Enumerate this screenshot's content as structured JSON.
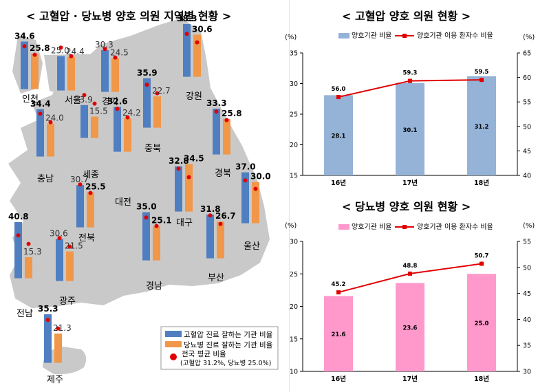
{
  "colors": {
    "map_land": "#c9c9c9",
    "bp_bar": "#4f7fc0",
    "db_bar": "#f0974a",
    "national_dot": "#e00000",
    "bp_chart_bar": "#95b3d7",
    "db_chart_bar": "#ff99cc",
    "rate_line": "#e00000"
  },
  "map_panel": {
    "title": "< 고혈압 · 당뇨병 양호 의원 지역별 현황 >",
    "legend": {
      "bp_label": "고혈압 진료 잘하는 기관 비율",
      "db_label": "당뇨병 진료 잘하는 기관 비율",
      "dot_label_line1": "전국 평균 비율",
      "dot_label_line2": "(고혈압 31.2%, 당뇨병 25.0%)"
    }
  },
  "chart_data": [
    {
      "type": "bar",
      "title": "< 고혈압 · 당뇨병 양호 의원 지역별 현황 >",
      "categories": [
        "인천",
        "서울",
        "경기",
        "강원",
        "충북",
        "세종",
        "대전",
        "충남",
        "경북",
        "대구",
        "울산",
        "전북",
        "부산",
        "경남",
        "전남",
        "광주",
        "제주"
      ],
      "series": [
        {
          "name": "고혈압 진료 잘하는 기관 비율",
          "values": [
            34.6,
            25.0,
            30.3,
            38.3,
            35.9,
            23.9,
            32.6,
            34.4,
            33.3,
            32.8,
            37.0,
            30.7,
            31.8,
            35.0,
            40.8,
            30.6,
            35.3
          ]
        },
        {
          "name": "당뇨병 진료 잘하는 기관 비율",
          "values": [
            25.8,
            24.4,
            24.5,
            30.6,
            22.7,
            15.5,
            24.2,
            24.0,
            25.8,
            34.5,
            30.0,
            25.5,
            26.7,
            25.1,
            15.3,
            21.5,
            21.3
          ]
        }
      ],
      "national_average": {
        "bp": 31.2,
        "db": 25.0
      },
      "bold_labels": {
        "bp": [
          "인천",
          "강원",
          "충북",
          "대전",
          "충남",
          "경북",
          "대구",
          "울산",
          "부산",
          "경남",
          "전남",
          "제주"
        ],
        "db": [
          "인천",
          "강원",
          "대구",
          "울산",
          "전북",
          "경북",
          "부산",
          "경남"
        ]
      }
    },
    {
      "type": "bar",
      "title": "< 고혈압 양호 의원 현황 >",
      "categories": [
        "16년",
        "17년",
        "18년"
      ],
      "series": [
        {
          "name": "양호기관 비율",
          "type": "bar",
          "axis": "left",
          "values": [
            28.1,
            30.1,
            31.2
          ]
        },
        {
          "name": "양호기관 이용 환자수 비율",
          "type": "line",
          "axis": "right",
          "values": [
            56.0,
            59.3,
            59.5
          ]
        }
      ],
      "ylabel": "(%)",
      "y2label": "(%)",
      "ylim": [
        15,
        35
      ],
      "yticks": [
        "15",
        "20",
        "25",
        "30",
        "35"
      ],
      "y2lim": [
        40,
        65
      ],
      "y2ticks": [
        "40",
        "45",
        "50",
        "55",
        "60",
        "65"
      ],
      "legend": "top"
    },
    {
      "type": "bar",
      "title": "< 당뇨병 양호 의원 현황 >",
      "categories": [
        "16년",
        "17년",
        "18년"
      ],
      "series": [
        {
          "name": "양호기관 비율",
          "type": "bar",
          "axis": "left",
          "values": [
            21.6,
            23.6,
            25.0
          ]
        },
        {
          "name": "양호기관 이용 환자수 비율",
          "type": "line",
          "axis": "right",
          "values": [
            45.2,
            48.8,
            50.7
          ]
        }
      ],
      "ylabel": "(%)",
      "y2label": "(%)",
      "ylim": [
        10,
        30
      ],
      "yticks": [
        "10",
        "15",
        "20",
        "25",
        "30"
      ],
      "y2lim": [
        30,
        55
      ],
      "y2ticks": [
        "30",
        "35",
        "40",
        "45",
        "50",
        "55"
      ],
      "legend": "top"
    }
  ]
}
